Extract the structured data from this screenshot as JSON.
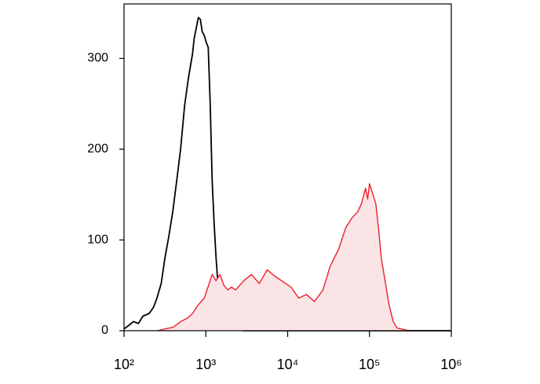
{
  "chart_data": {
    "type": "histogram_overlay",
    "xscale": "log",
    "xlim": [
      100,
      1000000
    ],
    "xticks": [
      {
        "value": 100,
        "label": "10²"
      },
      {
        "value": 1000,
        "label": "10³"
      },
      {
        "value": 10000,
        "label": "10⁴"
      },
      {
        "value": 100000,
        "label": "10⁵"
      },
      {
        "value": 1000000,
        "label": "10⁶"
      }
    ],
    "ylim": [
      0,
      360
    ],
    "yticks": [
      0,
      100,
      200,
      300
    ],
    "series": [
      {
        "color": "#000000",
        "fill": null,
        "x": [
          100,
          115,
          130,
          150,
          170,
          203,
          230,
          253,
          285,
          316,
          350,
          394,
          440,
          492,
          550,
          614,
          650,
          687,
          720,
          767,
          810,
          857,
          900,
          957,
          1010,
          1069,
          1130,
          1194,
          1260,
          1334,
          1410,
          1489,
          1660,
          1858,
          2318,
          2896,
          1000000
        ],
        "values": [
          2,
          6,
          10,
          8,
          16,
          19,
          26,
          36,
          52,
          80,
          102,
          131,
          165,
          200,
          248,
          279,
          292,
          305,
          322,
          334,
          345,
          343,
          330,
          325,
          318,
          312,
          250,
          166,
          120,
          80,
          50,
          28,
          14,
          6,
          1,
          0,
          0
        ]
      },
      {
        "color": "#e8212f",
        "fill": "#fbe4e6",
        "x": [
          253,
          400,
          492,
          600,
          687,
          800,
          957,
          1080,
          1194,
          1330,
          1489,
          1660,
          1858,
          2050,
          2318,
          2900,
          3614,
          4500,
          5623,
          7000,
          8750,
          11000,
          13640,
          17000,
          21230,
          27000,
          33040,
          42000,
          51520,
          62000,
          71780,
          80000,
          89540,
          95000,
          100000,
          110000,
          119400,
          130000,
          139300,
          155000,
          173800,
          195000,
          217300,
          302600
        ],
        "values": [
          0,
          4,
          10,
          14,
          19,
          28,
          36,
          50,
          62,
          55,
          62,
          50,
          45,
          48,
          45,
          55,
          62,
          52,
          67,
          60,
          54,
          48,
          36,
          40,
          32,
          45,
          71,
          90,
          114,
          125,
          131,
          140,
          157,
          145,
          162,
          150,
          140,
          110,
          80,
          55,
          28,
          10,
          3,
          0
        ]
      }
    ]
  }
}
